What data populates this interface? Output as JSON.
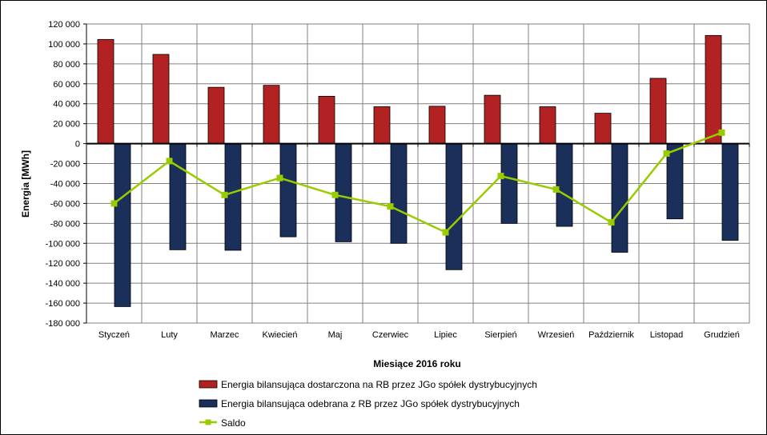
{
  "chart_data": {
    "type": "bar",
    "categories": [
      "Styczeń",
      "Luty",
      "Marzec",
      "Kwiecień",
      "Maj",
      "Czerwiec",
      "Lipiec",
      "Sierpień",
      "Wrzesień",
      "Październik",
      "Listopad",
      "Grudzień"
    ],
    "series": [
      {
        "name": "Energia bilansująca dostarczona na RB przez JGo spółek dystrybucyjnych",
        "type": "bar",
        "color": "#b22222",
        "values": [
          104500,
          89500,
          56500,
          58500,
          47500,
          37000,
          37500,
          48500,
          37000,
          30500,
          65500,
          108500
        ]
      },
      {
        "name": "Energia bilansująca odebrana z RB przez JGo spółek dystrybucyjnych",
        "type": "bar",
        "color": "#1a2f5a",
        "values": [
          -163500,
          -106500,
          -107000,
          -93500,
          -98500,
          -100000,
          -126500,
          -80000,
          -83000,
          -109000,
          -75500,
          -97000
        ]
      },
      {
        "name": "Saldo",
        "type": "line",
        "color": "#99cc00",
        "values": [
          -60000,
          -17500,
          -51500,
          -34500,
          -51500,
          -63000,
          -89000,
          -32500,
          -46000,
          -79000,
          -10000,
          11000
        ]
      }
    ],
    "ylabel": "Energia [MWh]",
    "xlabel": "Miesiące 2016  roku",
    "ylim": [
      -180000,
      120000
    ],
    "ytick_step": 20000,
    "ytick_labels": [
      "120 000",
      "100 000",
      "80 000",
      "60 000",
      "40 000",
      "20 000",
      "0",
      "-20 000",
      "-40 000",
      "-60 000",
      "-80 000",
      "-100 000",
      "-120 000",
      "-140 000",
      "-160 000",
      "-180 000"
    ],
    "grid": true,
    "legend_position": "bottom"
  }
}
